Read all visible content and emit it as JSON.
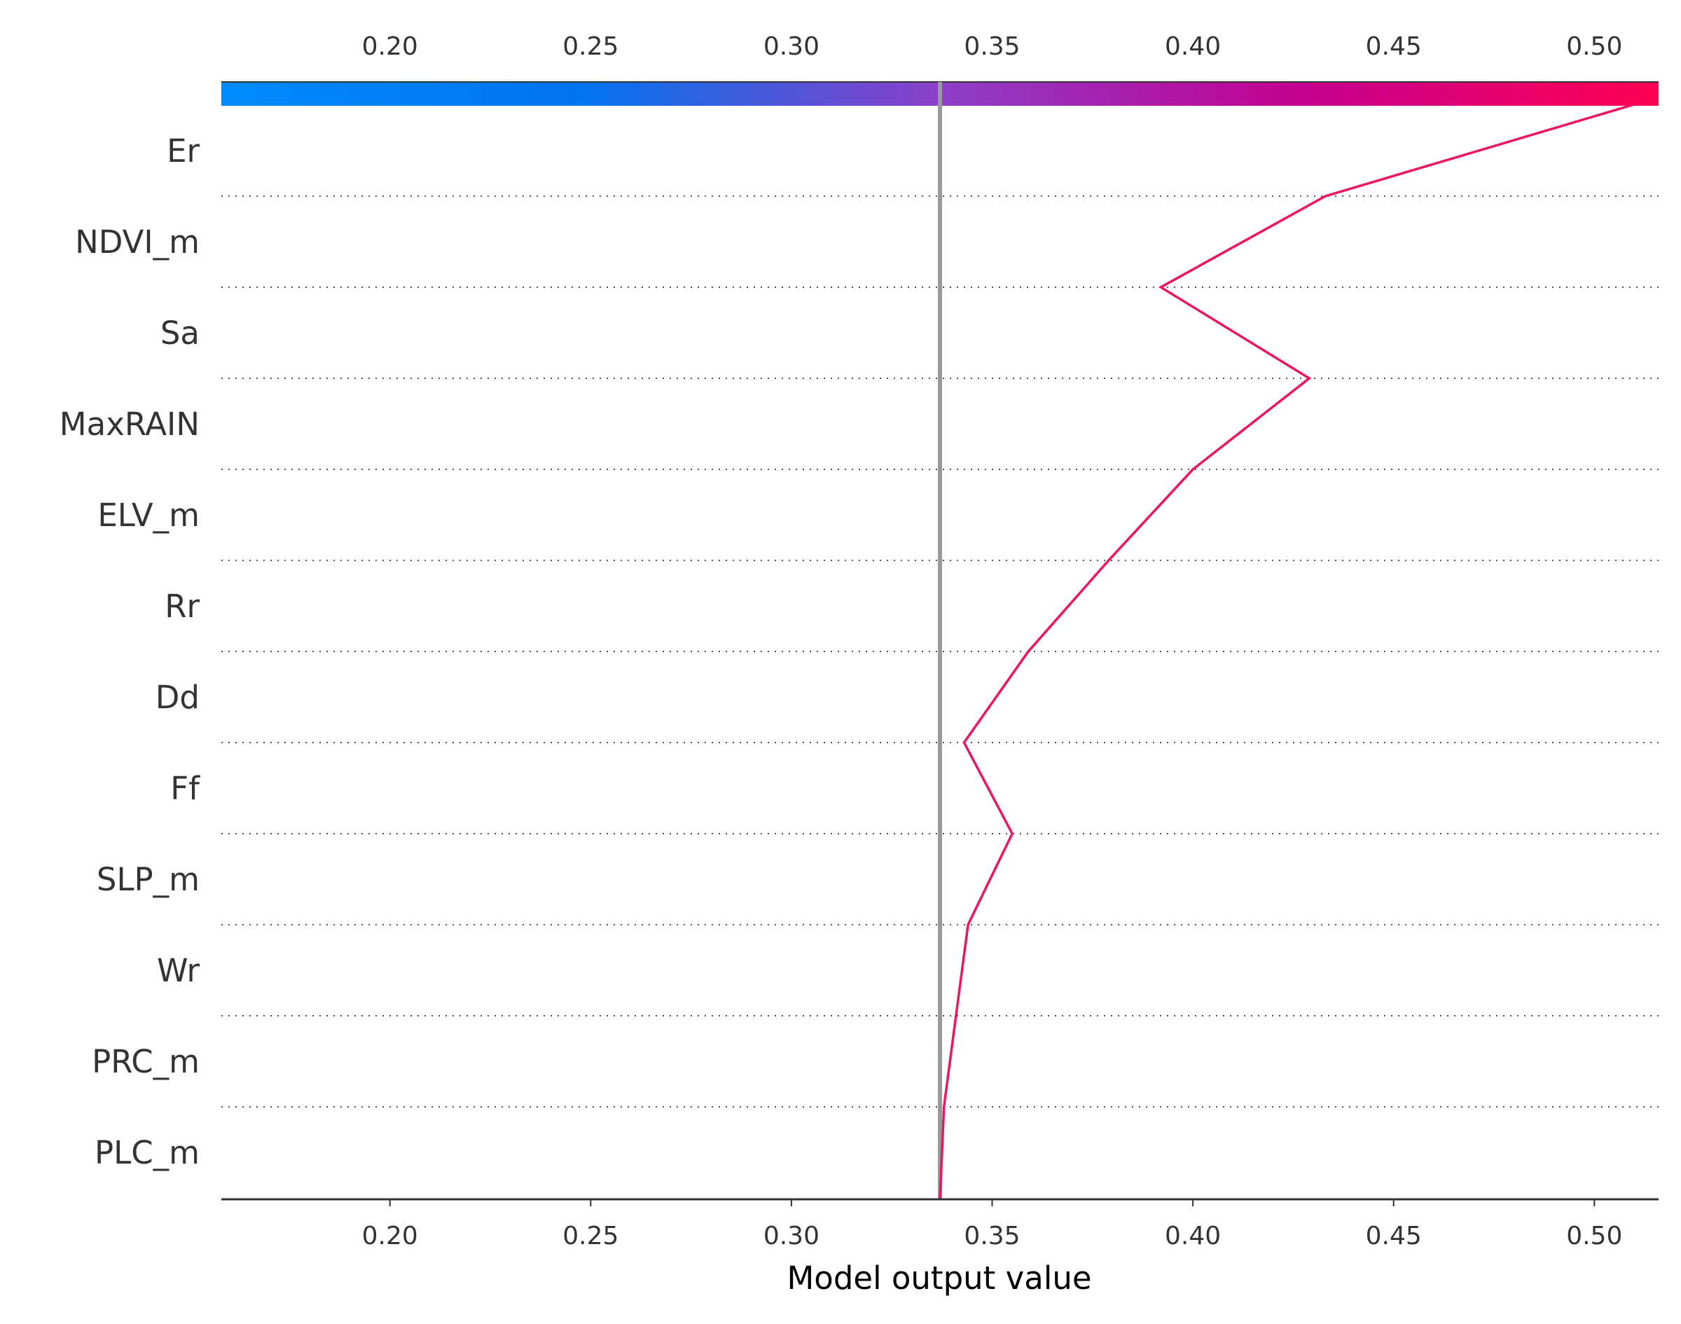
{
  "chart_data": {
    "type": "line",
    "chart_kind": "shap decision plot",
    "xlabel": "Model output value",
    "xlim": [
      0.158,
      0.516
    ],
    "xticks": [
      "0.20",
      "0.25",
      "0.30",
      "0.35",
      "0.40",
      "0.45",
      "0.50"
    ],
    "xtick_values": [
      0.2,
      0.25,
      0.3,
      0.35,
      0.4,
      0.45,
      0.5
    ],
    "base_value": 0.337,
    "features": [
      "Er",
      "NDVI_m",
      "Sa",
      "MaxRAIN",
      "ELV_m",
      "Rr",
      "Dd",
      "Ff",
      "SLP_m",
      "Wr",
      "PRC_m",
      "PLC_m"
    ],
    "path_top_to_bottom": [
      0.51,
      0.433,
      0.392,
      0.429,
      0.4,
      0.379,
      0.359,
      0.343,
      0.355,
      0.344,
      0.341,
      0.338,
      0.337
    ],
    "colorbar": {
      "min": 0.158,
      "max": 0.516,
      "colors": [
        "#008bfb",
        "#0074ef",
        "#8c3fc9",
        "#c40090",
        "#ff0052"
      ]
    },
    "line_color": "#f0145c",
    "base_line_color": "#999999",
    "grid": "dotted horizontal",
    "legend": "none"
  }
}
